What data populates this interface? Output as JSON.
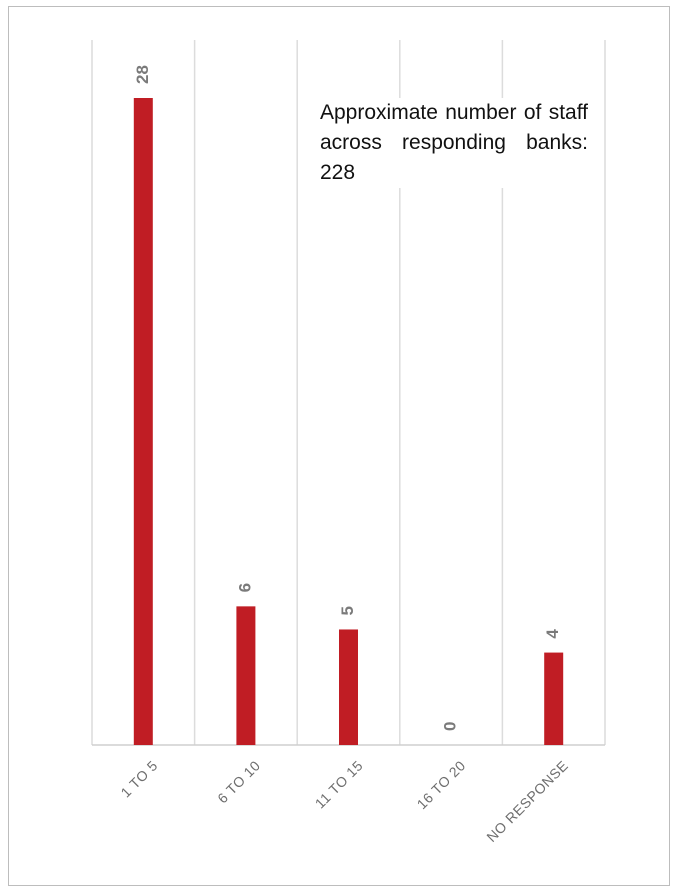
{
  "chart_data": {
    "type": "bar",
    "categories": [
      "1 TO 5",
      "6 TO 10",
      "11 TO 15",
      "16 TO 20",
      "NO RESPONSE"
    ],
    "values": [
      28,
      6,
      5,
      0,
      4
    ],
    "ylim": [
      0,
      28
    ],
    "grid": true,
    "legend": "none",
    "bar_color": "#c01d24",
    "annotation": "Approximate number of staff across responding banks: 228"
  }
}
